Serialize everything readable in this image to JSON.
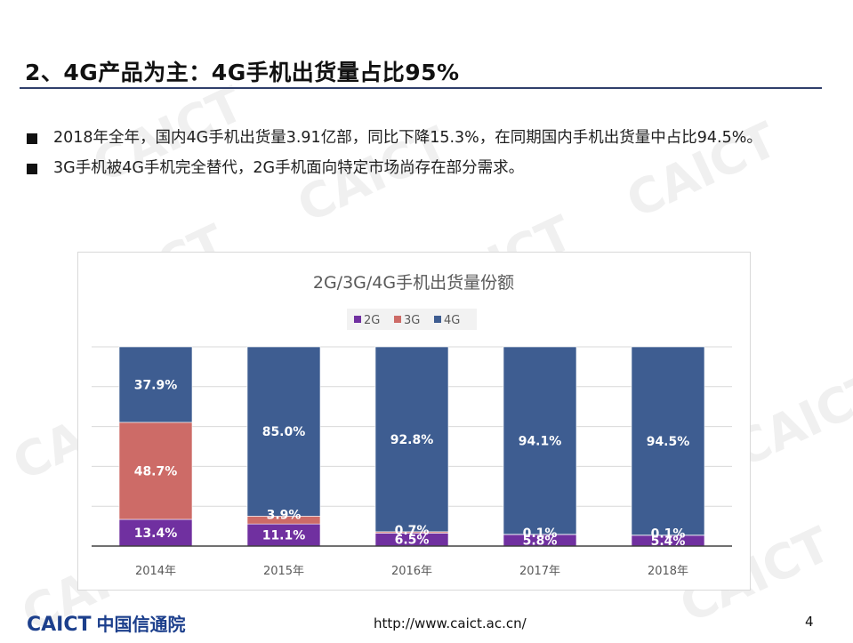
{
  "slide": {
    "title": "2、4G产品为主：4G手机出货量占比95%",
    "bullets": [
      "2018年全年，国内4G手机出货量3.91亿部，同比下降15.3%，在同期国内手机出货量中占比94.5%。",
      "3G手机被4G手机完全替代，2G手机面向特定市场尚存在部分需求。"
    ],
    "footer": {
      "logo_text": "CAICT",
      "org_name": "中国信通院",
      "url": "http://www.caict.ac.cn/",
      "page": "4"
    },
    "watermark": "CAICT"
  },
  "chart_data": {
    "type": "bar",
    "stacked": true,
    "title": "2G/3G/4G手机出货量份额",
    "categories": [
      "2014年",
      "2015年",
      "2016年",
      "2017年",
      "2018年"
    ],
    "series": [
      {
        "name": "2G",
        "color": "#7030a0",
        "values": [
          13.4,
          11.1,
          6.5,
          5.8,
          5.4
        ],
        "labels": [
          "13.4%",
          "11.1%",
          "6.5%",
          "5.8%",
          "5.4%"
        ]
      },
      {
        "name": "3G",
        "color": "#cd6b67",
        "values": [
          48.7,
          3.9,
          0.7,
          0.1,
          0.1
        ],
        "labels": [
          "48.7%",
          "3.9%",
          "0.7%",
          "0.1%",
          "0.1%"
        ]
      },
      {
        "name": "4G",
        "color": "#3e5d91",
        "values": [
          37.9,
          85.0,
          92.8,
          94.1,
          94.5
        ],
        "labels": [
          "37.9%",
          "85.0%",
          "92.8%",
          "94.1%",
          "94.5%"
        ]
      }
    ],
    "ylim": [
      0,
      100
    ],
    "grid": true,
    "legend": "top-center"
  }
}
